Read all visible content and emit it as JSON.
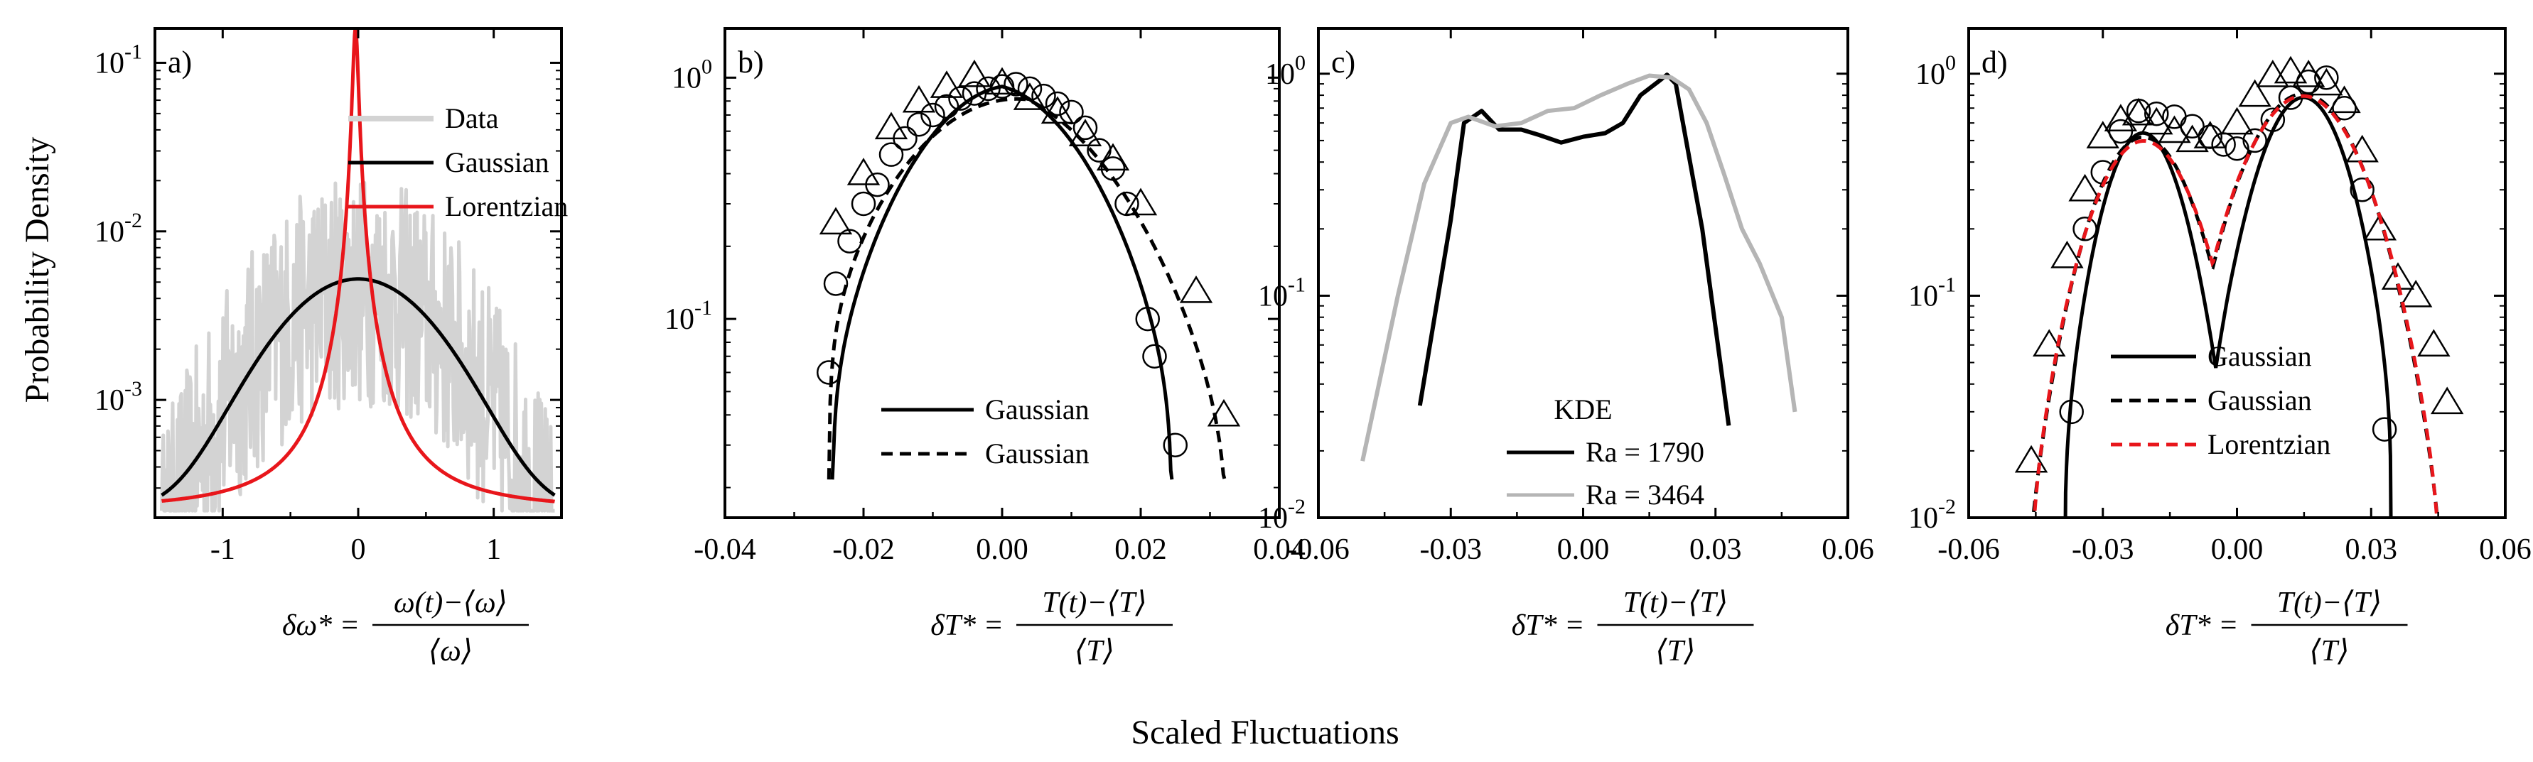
{
  "figure": {
    "ylabel": "Probability Density",
    "common_xlabel": "Scaled Fluctuations"
  },
  "chart_data": [
    {
      "type": "line",
      "panel": "a)",
      "yscale": "log",
      "xlim": [
        -1.5,
        1.5
      ],
      "ylim": [
        0.0002,
        0.16
      ],
      "xticks": [
        -1,
        0,
        1
      ],
      "xtick_labels": [
        "-1",
        "0",
        "1"
      ],
      "yticks": [
        0.001,
        0.01,
        0.1
      ],
      "ytick_labels": [
        {
          "base": "10",
          "exp": "-3"
        },
        {
          "base": "10",
          "exp": "-2"
        },
        {
          "base": "10",
          "exp": "-1"
        }
      ],
      "xlabel": {
        "lhs": "δω*",
        "num": "ω(t)−⟨ω⟩",
        "den": "⟨ω⟩"
      },
      "legend": [
        {
          "label": "Data",
          "color": "#d3d3d3"
        },
        {
          "label": "Gaussian",
          "color": "#000000"
        },
        {
          "label": "Lorentzian",
          "color": "#e8161b"
        }
      ],
      "series": [
        {
          "name": "Gaussian",
          "kind": "gaussian",
          "peak": 0.005,
          "mu": 0,
          "sigma": 0.48,
          "base": 0.00022,
          "color": "#000000"
        },
        {
          "name": "Lorentzian",
          "kind": "lorentzian",
          "peak": 0.16,
          "x0": -0.02,
          "gamma": 0.02,
          "base": 0.00022,
          "color": "#e8161b"
        },
        {
          "name": "Data",
          "kind": "noisy",
          "color": "#d3d3d3"
        }
      ]
    },
    {
      "type": "scatter",
      "panel": "b)",
      "yscale": "log",
      "xlim": [
        -0.04,
        0.04
      ],
      "ylim": [
        0.015,
        1.6
      ],
      "xticks": [
        -0.04,
        -0.02,
        0.0,
        0.02,
        0.04
      ],
      "xtick_labels": [
        "-0.04",
        "-0.02",
        "0.00",
        "0.02",
        "0.04"
      ],
      "yticks": [
        0.1,
        1
      ],
      "ytick_labels": [
        {
          "base": "10",
          "exp": "-1"
        },
        {
          "base": "10",
          "exp": "0"
        }
      ],
      "xlabel": {
        "lhs": "δT*",
        "num": "T(t)−⟨T⟩",
        "den": "⟨T⟩"
      },
      "legend": [
        {
          "label": "Gaussian",
          "style": "solid",
          "color": "#000000"
        },
        {
          "label": "Gaussian",
          "style": "dashed",
          "color": "#000000"
        }
      ],
      "series": [
        {
          "name": "circles",
          "marker": "circle",
          "x": [
            -0.025,
            -0.024,
            -0.022,
            -0.02,
            -0.018,
            -0.016,
            -0.014,
            -0.012,
            -0.01,
            -0.008,
            -0.006,
            -0.004,
            -0.002,
            0.0,
            0.002,
            0.004,
            0.006,
            0.008,
            0.01,
            0.012,
            0.014,
            0.016,
            0.018,
            0.021,
            0.022,
            0.025
          ],
          "y": [
            0.06,
            0.14,
            0.21,
            0.3,
            0.36,
            0.48,
            0.56,
            0.64,
            0.7,
            0.76,
            0.82,
            0.86,
            0.9,
            0.92,
            0.94,
            0.9,
            0.84,
            0.78,
            0.72,
            0.62,
            0.5,
            0.42,
            0.3,
            0.1,
            0.07,
            0.03
          ]
        },
        {
          "name": "triangles",
          "marker": "triangle",
          "x": [
            -0.024,
            -0.02,
            -0.016,
            -0.012,
            -0.008,
            -0.004,
            0.0,
            0.004,
            0.008,
            0.012,
            0.016,
            0.02,
            0.028,
            0.032
          ],
          "y": [
            0.25,
            0.4,
            0.62,
            0.8,
            0.92,
            1.02,
            0.95,
            0.82,
            0.72,
            0.58,
            0.46,
            0.3,
            0.13,
            0.04
          ]
        },
        {
          "name": "Gaussian",
          "kind": "gaussian_range",
          "peak": 0.92,
          "mu": -0.0005,
          "sigma": 0.0127,
          "range": [
            -0.0245,
            0.0245
          ],
          "style": "solid"
        },
        {
          "name": "Gaussian",
          "kind": "gaussian_range",
          "peak": 0.85,
          "mu": -0.001,
          "sigma": 0.0155,
          "range": [
            -0.025,
            0.0325
          ],
          "style": "dashed"
        }
      ]
    },
    {
      "type": "line",
      "panel": "c)",
      "yscale": "log",
      "xlim": [
        -0.06,
        0.06
      ],
      "ylim": [
        0.01,
        1.6
      ],
      "xticks": [
        -0.06,
        -0.03,
        0.0,
        0.03,
        0.06
      ],
      "xtick_labels": [
        "-0.06",
        "-0.03",
        "0.00",
        "0.03",
        "0.06"
      ],
      "yticks": [
        0.01,
        0.1,
        1
      ],
      "ytick_labels": [
        {
          "base": "10",
          "exp": "-2"
        },
        {
          "base": "10",
          "exp": "-1"
        },
        {
          "base": "10",
          "exp": "0"
        }
      ],
      "xlabel": {
        "lhs": "δT*",
        "num": "T(t)−⟨T⟩",
        "den": "⟨T⟩"
      },
      "legend_title": "KDE",
      "legend": [
        {
          "label": "Ra = 1790",
          "color": "#000000"
        },
        {
          "label": "Ra = 3464",
          "color": "#b5b5b5"
        }
      ],
      "series": [
        {
          "name": "Ra = 1790",
          "color": "#000000",
          "x": [
            -0.037,
            -0.03,
            -0.027,
            -0.023,
            -0.019,
            -0.014,
            -0.01,
            -0.005,
            0.0,
            0.005,
            0.009,
            0.013,
            0.017,
            0.019,
            0.021,
            0.027,
            0.033
          ],
          "y": [
            0.032,
            0.22,
            0.6,
            0.68,
            0.56,
            0.56,
            0.53,
            0.49,
            0.52,
            0.54,
            0.6,
            0.8,
            0.92,
            0.99,
            0.9,
            0.2,
            0.026
          ]
        },
        {
          "name": "Ra = 3464",
          "color": "#b5b5b5",
          "x": [
            -0.05,
            -0.042,
            -0.036,
            -0.03,
            -0.026,
            -0.02,
            -0.014,
            -0.008,
            -0.002,
            0.004,
            0.01,
            0.015,
            0.02,
            0.024,
            0.028,
            0.032,
            0.036,
            0.04,
            0.045,
            0.048
          ],
          "y": [
            0.018,
            0.1,
            0.32,
            0.6,
            0.64,
            0.58,
            0.6,
            0.68,
            0.7,
            0.8,
            0.9,
            0.98,
            0.96,
            0.85,
            0.6,
            0.35,
            0.2,
            0.14,
            0.08,
            0.03
          ]
        }
      ]
    },
    {
      "type": "scatter",
      "panel": "d)",
      "yscale": "log",
      "xlim": [
        -0.06,
        0.06
      ],
      "ylim": [
        0.01,
        1.6
      ],
      "xticks": [
        -0.06,
        -0.03,
        0.0,
        0.03,
        0.06
      ],
      "xtick_labels": [
        "-0.06",
        "-0.03",
        "0.00",
        "0.03",
        "0.06"
      ],
      "yticks": [
        0.01,
        0.1,
        1
      ],
      "ytick_labels": [
        {
          "base": "10",
          "exp": "-2"
        },
        {
          "base": "10",
          "exp": "-1"
        },
        {
          "base": "10",
          "exp": "0"
        }
      ],
      "xlabel": {
        "lhs": "δT*",
        "num": "T(t)−⟨T⟩",
        "den": "⟨T⟩"
      },
      "legend": [
        {
          "label": "Gaussian",
          "style": "solid",
          "color": "#000000"
        },
        {
          "label": "Gaussian",
          "style": "dashed",
          "color": "#000000"
        },
        {
          "label": "Lorentzian",
          "style": "dashed",
          "color": "#e8161b"
        }
      ],
      "series": [
        {
          "name": "circles",
          "marker": "circle",
          "x": [
            -0.037,
            -0.034,
            -0.03,
            -0.026,
            -0.022,
            -0.018,
            -0.014,
            -0.01,
            -0.006,
            -0.003,
            0.0,
            0.004,
            0.008,
            0.012,
            0.016,
            0.02,
            0.024,
            0.028,
            0.033
          ],
          "y": [
            0.03,
            0.2,
            0.36,
            0.55,
            0.68,
            0.66,
            0.64,
            0.58,
            0.52,
            0.48,
            0.46,
            0.5,
            0.62,
            0.78,
            0.92,
            0.96,
            0.7,
            0.3,
            0.025
          ]
        },
        {
          "name": "triangles",
          "marker": "triangle",
          "x": [
            -0.046,
            -0.042,
            -0.038,
            -0.034,
            -0.03,
            -0.026,
            -0.022,
            -0.018,
            -0.014,
            -0.01,
            -0.006,
            0.0,
            0.004,
            0.008,
            0.012,
            0.016,
            0.02,
            0.024,
            0.028,
            0.032,
            0.036,
            0.04,
            0.044,
            0.047
          ],
          "y": [
            0.018,
            0.06,
            0.15,
            0.3,
            0.52,
            0.62,
            0.66,
            0.6,
            0.55,
            0.5,
            0.52,
            0.6,
            0.8,
            0.98,
            1.02,
            0.98,
            0.9,
            0.75,
            0.45,
            0.2,
            0.12,
            0.1,
            0.06,
            0.033
          ]
        },
        {
          "name": "Gaussian",
          "kind": "bimodal",
          "style": "solid",
          "color": "#000000",
          "peaks": [
            {
              "peak": 0.68,
              "mu": -0.022,
              "sigma": 0.0075
            },
            {
              "peak": 0.95,
              "mu": 0.016,
              "sigma": 0.0085
            }
          ],
          "range": [
            -0.0385,
            0.0345
          ]
        },
        {
          "name": "Gaussian",
          "kind": "bimodal",
          "style": "dashed",
          "color": "#000000",
          "peaks": [
            {
              "peak": 0.62,
              "mu": -0.022,
              "sigma": 0.0095
            },
            {
              "peak": 0.92,
              "mu": 0.016,
              "sigma": 0.011
            }
          ],
          "range": [
            -0.047,
            0.046
          ]
        },
        {
          "name": "Lorentzian",
          "kind": "bimodal",
          "style": "dashed",
          "color": "#e8161b",
          "peaks": [
            {
              "peak": 0.6,
              "mu": -0.022,
              "sigma": 0.0098
            },
            {
              "peak": 0.9,
              "mu": 0.016,
              "sigma": 0.0112
            }
          ],
          "range": [
            -0.046,
            0.0455
          ]
        }
      ]
    }
  ]
}
